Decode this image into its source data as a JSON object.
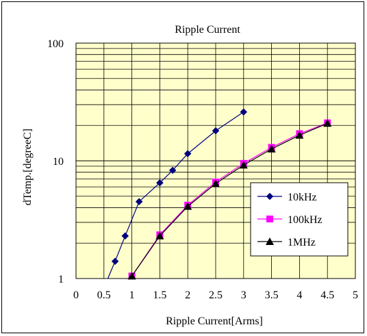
{
  "chart_data": {
    "type": "line",
    "title": "Ripple Current",
    "xlabel": "Ripple Current[Arms]",
    "ylabel": "dTemp.[degreeC]",
    "xlim": [
      0,
      5
    ],
    "ylim": [
      1,
      100
    ],
    "yscale": "log",
    "x_ticks": [
      0,
      0.5,
      1,
      1.5,
      2,
      2.5,
      3,
      3.5,
      4,
      4.5,
      5
    ],
    "x_tick_labels": [
      "0",
      "0.5",
      "1",
      "1.5",
      "2",
      "2.5",
      "3",
      "3.5",
      "4",
      "4.5",
      "5"
    ],
    "y_ticks": [
      1,
      10,
      100
    ],
    "y_tick_labels": [
      "1",
      "10",
      "100"
    ],
    "grid": true,
    "plot_background": "#ffffcc",
    "legend_position": "lower-right",
    "series": [
      {
        "name": "10kHz",
        "color": "#000080",
        "marker": "diamond",
        "line_only_points": [
          [
            0.57,
            1.0
          ]
        ],
        "points": [
          [
            0.7,
            1.4
          ],
          [
            0.88,
            2.3
          ],
          [
            1.13,
            4.5
          ],
          [
            1.5,
            6.5
          ],
          [
            1.73,
            8.3
          ],
          [
            2.0,
            11.5
          ],
          [
            2.5,
            18.0
          ],
          [
            3.0,
            26.0
          ]
        ]
      },
      {
        "name": "100kHz",
        "color": "#ff00ff",
        "marker": "square",
        "points": [
          [
            1.0,
            1.05
          ],
          [
            1.5,
            2.35
          ],
          [
            2.0,
            4.2
          ],
          [
            2.5,
            6.6
          ],
          [
            3.0,
            9.5
          ],
          [
            3.5,
            13.0
          ],
          [
            4.0,
            17.0
          ],
          [
            4.5,
            21.0
          ]
        ]
      },
      {
        "name": "1MHz",
        "color": "#000000",
        "marker": "triangle",
        "points": [
          [
            1.0,
            1.05
          ],
          [
            1.5,
            2.3
          ],
          [
            2.0,
            4.1
          ],
          [
            2.5,
            6.4
          ],
          [
            3.0,
            9.2
          ],
          [
            3.5,
            12.6
          ],
          [
            4.0,
            16.5
          ],
          [
            4.5,
            20.8
          ]
        ]
      }
    ]
  }
}
